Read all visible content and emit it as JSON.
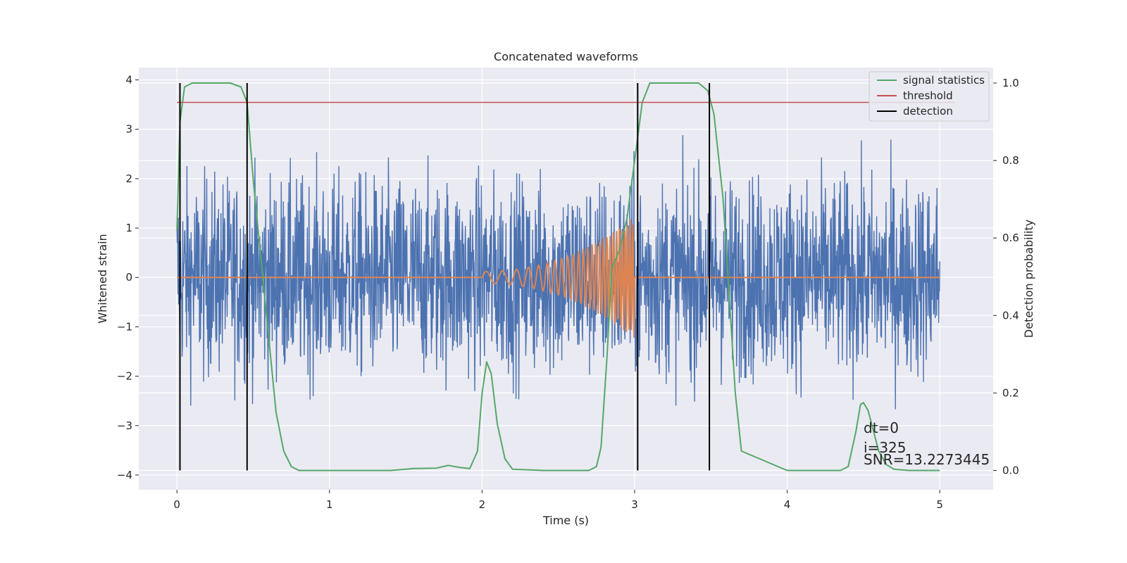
{
  "chart_data": {
    "type": "line",
    "title": "Concatenated waveforms",
    "xlabel": "Time (s)",
    "ylabel": "Whitened strain",
    "y2label": "Detection probability",
    "xlim": [
      -0.25,
      5.35
    ],
    "ylim": [
      -4.3,
      4.25
    ],
    "y2lim": [
      -0.05,
      1.04
    ],
    "x_ticks": [
      "0",
      "1",
      "2",
      "3",
      "4",
      "5"
    ],
    "y_ticks": [
      "4",
      "3",
      "2",
      "1",
      "0",
      "−1",
      "−2",
      "−3",
      "−4"
    ],
    "y2_ticks": [
      "1.0",
      "0.8",
      "0.6",
      "0.4",
      "0.2",
      "0.0"
    ],
    "grid": true,
    "legend_position": "top-right",
    "legend": [
      {
        "label": "signal statistics",
        "color": "#55a868"
      },
      {
        "label": "threshold",
        "color": "#c44e52"
      },
      {
        "label": "detection",
        "color": "#000000"
      }
    ],
    "series": [
      {
        "role": "whitened strain (noise)",
        "axis": "left",
        "color": "#4c72b0",
        "x_range": [
          0,
          5
        ],
        "typical_amplitude": 1.0,
        "max_abs": 3.9
      },
      {
        "role": "injected waveform",
        "axis": "left",
        "color": "#dd8452",
        "x_range": [
          0,
          5
        ],
        "chirp_start": 2.0,
        "chirp_end": 3.0,
        "peak_amplitude": 1.25
      },
      {
        "name": "signal statistics",
        "axis": "right",
        "color": "#55a868",
        "x": [
          0,
          0.02,
          0.05,
          0.1,
          0.2,
          0.35,
          0.42,
          0.46,
          0.5,
          0.55,
          0.6,
          0.65,
          0.7,
          0.75,
          0.8,
          1.0,
          1.4,
          1.5,
          1.55,
          1.7,
          1.78,
          1.85,
          1.92,
          1.97,
          2.0,
          2.03,
          2.06,
          2.1,
          2.15,
          2.2,
          2.4,
          2.7,
          2.75,
          2.78,
          2.82,
          2.85,
          2.9,
          2.95,
          3.0,
          3.05,
          3.1,
          3.3,
          3.42,
          3.48,
          3.52,
          3.58,
          3.62,
          3.66,
          3.7,
          4.0,
          4.35,
          4.4,
          4.45,
          4.48,
          4.5,
          4.53,
          4.6,
          4.65,
          4.7,
          4.8,
          5.0
        ],
        "values": [
          0.62,
          0.9,
          0.99,
          1.0,
          1.0,
          1.0,
          0.99,
          0.95,
          0.75,
          0.55,
          0.35,
          0.15,
          0.05,
          0.01,
          0.0,
          0.0,
          0.0,
          0.003,
          0.005,
          0.006,
          0.013,
          0.008,
          0.005,
          0.05,
          0.2,
          0.28,
          0.25,
          0.12,
          0.03,
          0.003,
          0.0,
          0.0,
          0.01,
          0.06,
          0.3,
          0.52,
          0.57,
          0.65,
          0.8,
          0.95,
          1.0,
          1.0,
          1.0,
          0.98,
          0.92,
          0.7,
          0.45,
          0.2,
          0.05,
          0.0,
          0.0,
          0.01,
          0.1,
          0.17,
          0.175,
          0.155,
          0.05,
          0.015,
          0.003,
          0.0,
          0.0
        ]
      },
      {
        "name": "threshold",
        "axis": "right",
        "color": "#c44e52",
        "x": [
          0,
          5.1
        ],
        "values": [
          0.95,
          0.95
        ]
      },
      {
        "name": "detection",
        "axis": "right",
        "color": "#000000",
        "x": [
          0.02,
          0.46,
          3.02,
          3.49
        ],
        "y_range": [
          0.0,
          1.0
        ]
      }
    ],
    "annotations": [
      "dt=0",
      "i=325",
      "SNR=13.2273445"
    ]
  }
}
